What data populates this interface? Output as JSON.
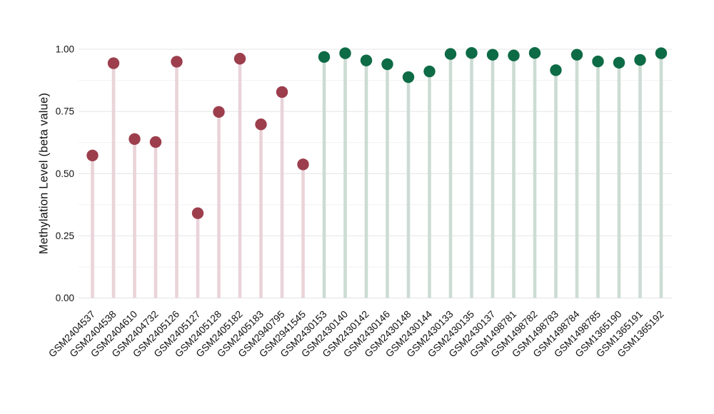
{
  "figure": {
    "background": "#ffffff",
    "title": "",
    "legend": "none"
  },
  "chart_data": {
    "type": "scatter",
    "variant": "lollipop",
    "title": "",
    "xlabel": "",
    "ylabel": "Methylation Level (beta value)",
    "ylim": [
      0.0,
      1.0
    ],
    "yticks": [
      {
        "value": 0.0,
        "label": "0.00"
      },
      {
        "value": 0.25,
        "label": "0.25"
      },
      {
        "value": 0.5,
        "label": "0.50"
      },
      {
        "value": 0.75,
        "label": "0.75"
      },
      {
        "value": 1.0,
        "label": "1.00"
      }
    ],
    "minor_gridlines": [
      0.125,
      0.375,
      0.625,
      0.875
    ],
    "grid": true,
    "legend_position": "none",
    "groups": {
      "group1": {
        "dot_color": "#9d3e4d",
        "stem_color": "#e9d3d9"
      },
      "group2": {
        "dot_color": "#0d6b45",
        "stem_color": "#ccdcd4"
      }
    },
    "points": [
      {
        "label": "GSM2404537",
        "value": 0.573,
        "group": "group1"
      },
      {
        "label": "GSM2404538",
        "value": 0.944,
        "group": "group1"
      },
      {
        "label": "GSM2404610",
        "value": 0.639,
        "group": "group1"
      },
      {
        "label": "GSM2404732",
        "value": 0.627,
        "group": "group1"
      },
      {
        "label": "GSM2405126",
        "value": 0.95,
        "group": "group1"
      },
      {
        "label": "GSM2405127",
        "value": 0.341,
        "group": "group1"
      },
      {
        "label": "GSM2405128",
        "value": 0.748,
        "group": "group1"
      },
      {
        "label": "GSM2405182",
        "value": 0.962,
        "group": "group1"
      },
      {
        "label": "GSM2405183",
        "value": 0.698,
        "group": "group1"
      },
      {
        "label": "GSM2940795",
        "value": 0.828,
        "group": "group1"
      },
      {
        "label": "GSM2941545",
        "value": 0.537,
        "group": "group1"
      },
      {
        "label": "GSM2430153",
        "value": 0.969,
        "group": "group2"
      },
      {
        "label": "GSM2430140",
        "value": 0.984,
        "group": "group2"
      },
      {
        "label": "GSM2430142",
        "value": 0.955,
        "group": "group2"
      },
      {
        "label": "GSM2430146",
        "value": 0.94,
        "group": "group2"
      },
      {
        "label": "GSM2430148",
        "value": 0.888,
        "group": "group2"
      },
      {
        "label": "GSM2430144",
        "value": 0.911,
        "group": "group2"
      },
      {
        "label": "GSM2430133",
        "value": 0.981,
        "group": "group2"
      },
      {
        "label": "GSM2430135",
        "value": 0.985,
        "group": "group2"
      },
      {
        "label": "GSM2430137",
        "value": 0.978,
        "group": "group2"
      },
      {
        "label": "GSM1498781",
        "value": 0.975,
        "group": "group2"
      },
      {
        "label": "GSM1498782",
        "value": 0.985,
        "group": "group2"
      },
      {
        "label": "GSM1498783",
        "value": 0.916,
        "group": "group2"
      },
      {
        "label": "GSM1498784",
        "value": 0.978,
        "group": "group2"
      },
      {
        "label": "GSM1498785",
        "value": 0.951,
        "group": "group2"
      },
      {
        "label": "GSM1365190",
        "value": 0.946,
        "group": "group2"
      },
      {
        "label": "GSM1365191",
        "value": 0.957,
        "group": "group2"
      },
      {
        "label": "GSM1365192",
        "value": 0.984,
        "group": "group2"
      }
    ],
    "gridline_colors": {
      "major": "#e4e4e4",
      "minor": "#f2f2f2"
    },
    "tick_label_color": "#111111"
  }
}
